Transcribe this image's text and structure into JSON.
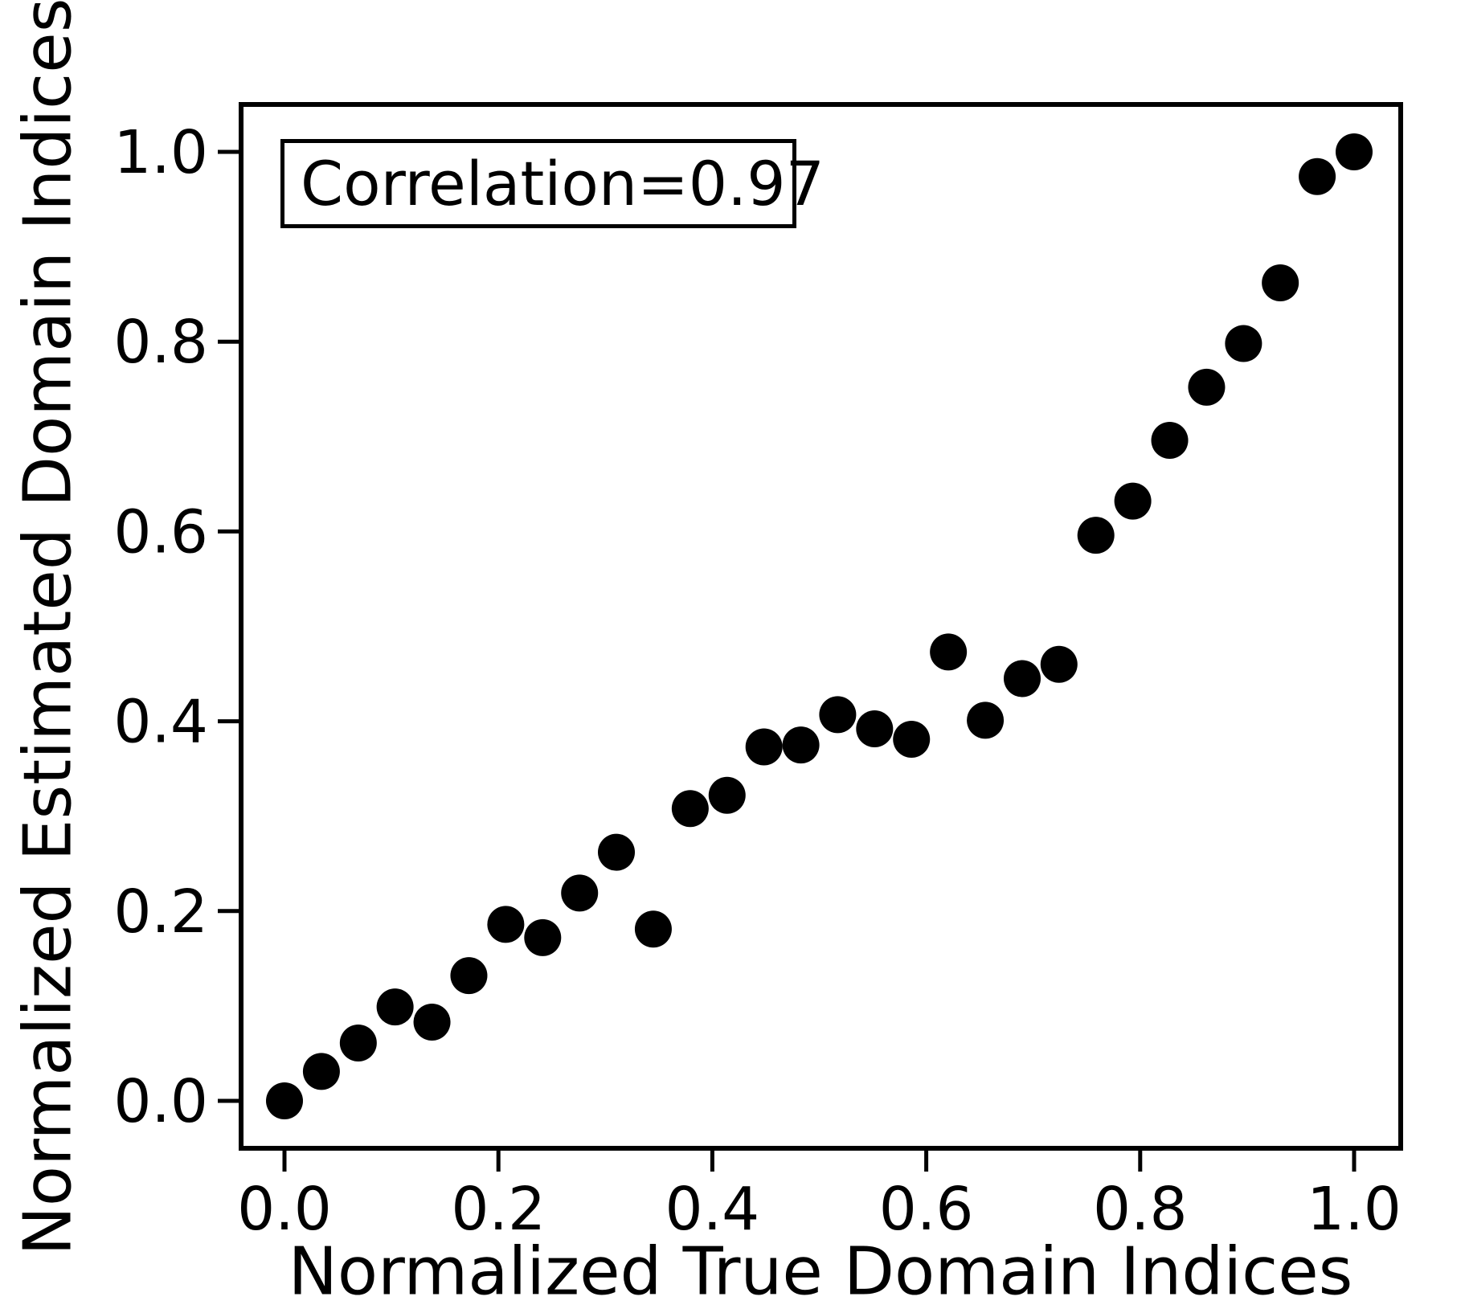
{
  "figure": {
    "background": "#ffffff",
    "foreground": "#000000"
  },
  "chart_data": {
    "type": "scatter",
    "annotation": "Correlation=0.97",
    "xlabel": "Normalized True Domain Indices",
    "ylabel": "Normalized Estimated Domain Indices",
    "xlim": [
      -0.0406,
      1.0436
    ],
    "ylim": [
      -0.05,
      1.05
    ],
    "grid": false,
    "legend": "none",
    "marker_color": "#000000",
    "xticks": [
      "0.0",
      "0.2",
      "0.4",
      "0.6",
      "0.8",
      "1.0"
    ],
    "yticks": [
      "0.0",
      "0.2",
      "0.4",
      "0.6",
      "0.8",
      "1.0"
    ],
    "points": [
      [
        0.0,
        0.0
      ],
      [
        0.0345,
        0.031
      ],
      [
        0.069,
        0.061
      ],
      [
        0.1034,
        0.099
      ],
      [
        0.1379,
        0.083
      ],
      [
        0.1724,
        0.132
      ],
      [
        0.2069,
        0.186
      ],
      [
        0.2414,
        0.172
      ],
      [
        0.2759,
        0.219
      ],
      [
        0.3103,
        0.262
      ],
      [
        0.3448,
        0.181
      ],
      [
        0.3793,
        0.308
      ],
      [
        0.4138,
        0.322
      ],
      [
        0.4483,
        0.373
      ],
      [
        0.4828,
        0.375
      ],
      [
        0.5172,
        0.407
      ],
      [
        0.5517,
        0.392
      ],
      [
        0.5862,
        0.381
      ],
      [
        0.6207,
        0.473
      ],
      [
        0.6552,
        0.401
      ],
      [
        0.6897,
        0.445
      ],
      [
        0.7241,
        0.46
      ],
      [
        0.7586,
        0.596
      ],
      [
        0.7931,
        0.632
      ],
      [
        0.8276,
        0.696
      ],
      [
        0.8621,
        0.752
      ],
      [
        0.8966,
        0.798
      ],
      [
        0.931,
        0.862
      ],
      [
        0.9655,
        0.974
      ],
      [
        1.0,
        1.0
      ]
    ]
  }
}
